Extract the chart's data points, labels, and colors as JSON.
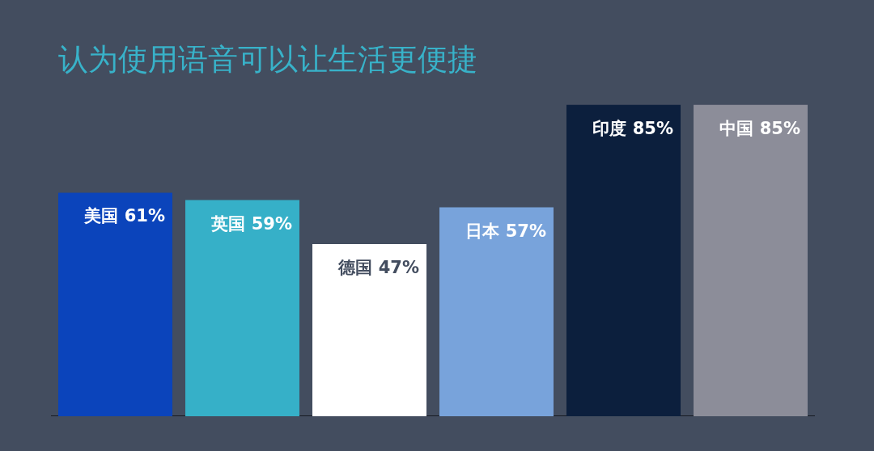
{
  "chart_data": {
    "type": "bar",
    "title": "认为使用语音可以让生活更便捷",
    "categories": [
      "美国",
      "英国",
      "德国",
      "日本",
      "印度",
      "中国"
    ],
    "values": [
      61,
      59,
      47,
      57,
      85,
      85
    ],
    "colors": [
      "#0b44bb",
      "#36b0c8",
      "#ffffff",
      "#78a3db",
      "#0c1f3d",
      "#8c8d99"
    ],
    "value_labels": [
      "61%",
      "59%",
      "47%",
      "57%",
      "85%",
      "85%"
    ],
    "tick_labels": "x"
  }
}
